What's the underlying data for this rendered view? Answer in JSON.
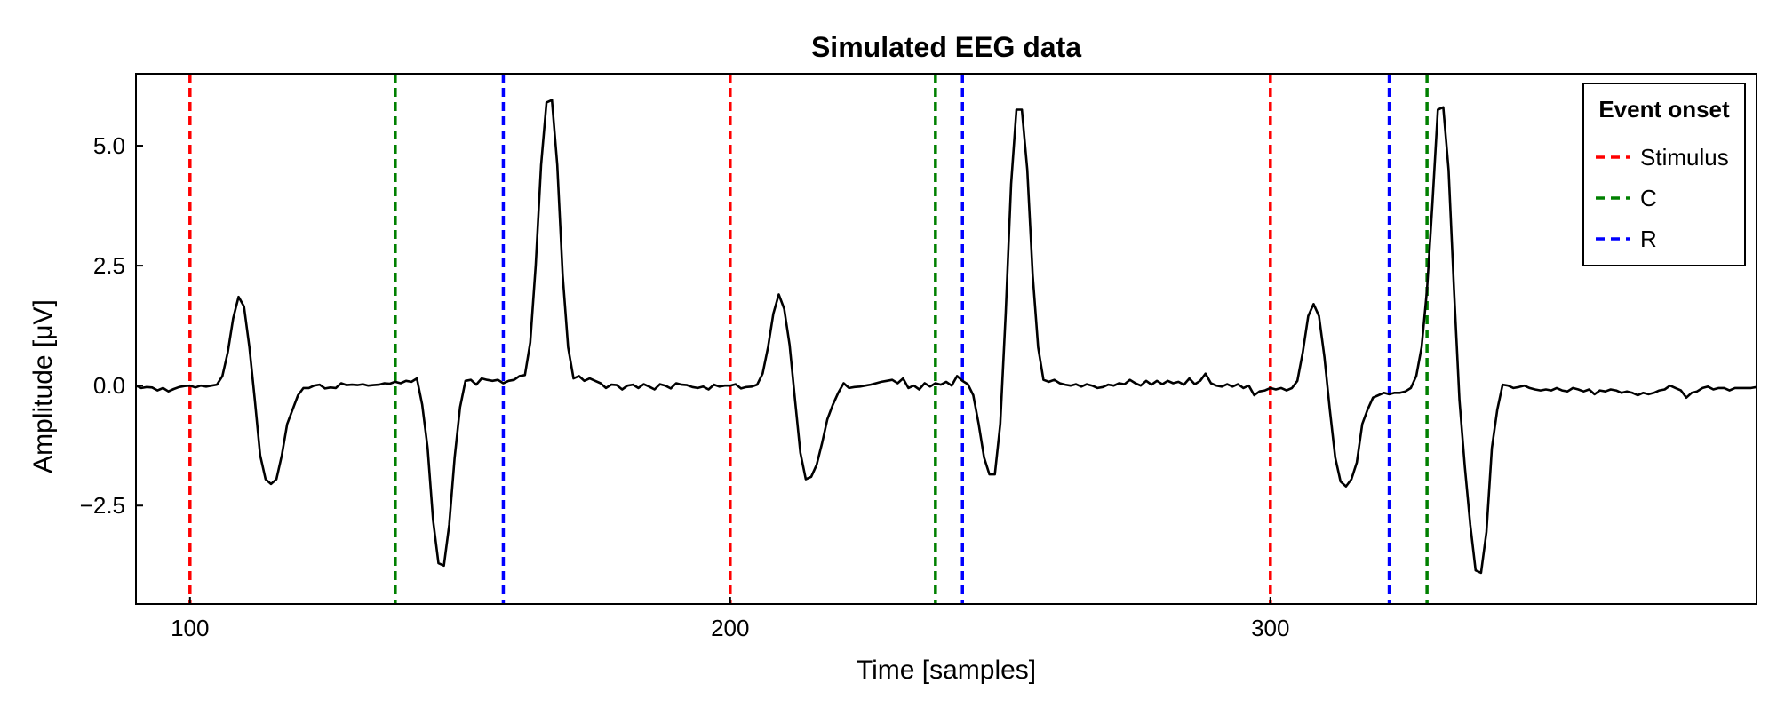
{
  "chart_data": {
    "type": "line",
    "title": "Simulated EEG data",
    "xlabel": "Time [samples]",
    "ylabel": "Amplitude [μV]",
    "xlim": [
      90,
      390
    ],
    "ylim": [
      -4.55,
      6.5
    ],
    "xticks": [
      100,
      200,
      300
    ],
    "xtick_labels": [
      "100",
      "200",
      "300"
    ],
    "yticks": [
      -2.5,
      0.0,
      2.5,
      5.0
    ],
    "ytick_labels": [
      "−2.5",
      "0.0",
      "2.5",
      "5.0"
    ],
    "grid": false,
    "legend": {
      "title": "Event onset",
      "placement": "top-right",
      "entries": [
        {
          "label": "Stimulus",
          "color": "#ff0000"
        },
        {
          "label": "C",
          "color": "#008000"
        },
        {
          "label": "R",
          "color": "#0000ff"
        }
      ]
    },
    "series": [
      {
        "color": "#000000",
        "points": [
          [
            90,
            0.0
          ],
          [
            91,
            -0.05
          ],
          [
            92,
            -0.03
          ],
          [
            93,
            -0.04
          ],
          [
            94,
            -0.1
          ],
          [
            95,
            -0.05
          ],
          [
            96,
            -0.12
          ],
          [
            97,
            -0.07
          ],
          [
            98,
            -0.03
          ],
          [
            99,
            -0.01
          ],
          [
            100,
            0.0
          ],
          [
            101,
            -0.04
          ],
          [
            102,
            0.0
          ],
          [
            103,
            -0.02
          ],
          [
            104,
            0.0
          ],
          [
            105,
            0.02
          ],
          [
            106,
            0.2
          ],
          [
            107,
            0.7
          ],
          [
            108,
            1.4
          ],
          [
            109,
            1.85
          ],
          [
            110,
            1.65
          ],
          [
            111,
            0.8
          ],
          [
            112,
            -0.3
          ],
          [
            113,
            -1.45
          ],
          [
            114,
            -1.95
          ],
          [
            115,
            -2.05
          ],
          [
            116,
            -1.95
          ],
          [
            117,
            -1.45
          ],
          [
            118,
            -0.8
          ],
          [
            119,
            -0.5
          ],
          [
            120,
            -0.2
          ],
          [
            121,
            -0.05
          ],
          [
            122,
            -0.05
          ],
          [
            123,
            0.0
          ],
          [
            124,
            0.02
          ],
          [
            125,
            -0.06
          ],
          [
            126,
            -0.04
          ],
          [
            127,
            -0.05
          ],
          [
            128,
            0.05
          ],
          [
            129,
            0.01
          ],
          [
            130,
            0.02
          ],
          [
            131,
            0.01
          ],
          [
            132,
            0.03
          ],
          [
            133,
            0.0
          ],
          [
            134,
            0.01
          ],
          [
            135,
            0.02
          ],
          [
            136,
            0.05
          ],
          [
            137,
            0.04
          ],
          [
            138,
            0.08
          ],
          [
            139,
            0.05
          ],
          [
            140,
            0.1
          ],
          [
            141,
            0.08
          ],
          [
            142,
            0.15
          ],
          [
            143,
            -0.4
          ],
          [
            144,
            -1.3
          ],
          [
            145,
            -2.8
          ],
          [
            146,
            -3.7
          ],
          [
            147,
            -3.75
          ],
          [
            148,
            -2.9
          ],
          [
            149,
            -1.5
          ],
          [
            150,
            -0.45
          ],
          [
            151,
            0.1
          ],
          [
            152,
            0.12
          ],
          [
            153,
            0.02
          ],
          [
            154,
            0.15
          ],
          [
            155,
            0.12
          ],
          [
            156,
            0.1
          ],
          [
            157,
            0.12
          ],
          [
            158,
            0.05
          ],
          [
            159,
            0.1
          ],
          [
            160,
            0.12
          ],
          [
            161,
            0.2
          ],
          [
            162,
            0.22
          ],
          [
            163,
            0.9
          ],
          [
            164,
            2.5
          ],
          [
            165,
            4.6
          ],
          [
            166,
            5.9
          ],
          [
            167,
            5.95
          ],
          [
            168,
            4.6
          ],
          [
            169,
            2.3
          ],
          [
            170,
            0.8
          ],
          [
            171,
            0.15
          ],
          [
            172,
            0.2
          ],
          [
            173,
            0.1
          ],
          [
            174,
            0.15
          ],
          [
            175,
            0.1
          ],
          [
            176,
            0.05
          ],
          [
            177,
            -0.05
          ],
          [
            178,
            0.02
          ],
          [
            179,
            0.01
          ],
          [
            180,
            -0.08
          ],
          [
            181,
            0.0
          ],
          [
            182,
            0.02
          ],
          [
            183,
            -0.05
          ],
          [
            184,
            0.03
          ],
          [
            185,
            -0.02
          ],
          [
            186,
            -0.08
          ],
          [
            187,
            0.03
          ],
          [
            188,
            0.0
          ],
          [
            189,
            -0.06
          ],
          [
            190,
            0.05
          ],
          [
            191,
            0.02
          ],
          [
            192,
            0.01
          ],
          [
            193,
            -0.03
          ],
          [
            194,
            -0.05
          ],
          [
            195,
            -0.02
          ],
          [
            196,
            -0.08
          ],
          [
            197,
            0.02
          ],
          [
            198,
            -0.02
          ],
          [
            199,
            0.0
          ],
          [
            200,
            0.0
          ],
          [
            201,
            0.03
          ],
          [
            202,
            -0.06
          ],
          [
            203,
            -0.03
          ],
          [
            204,
            -0.02
          ],
          [
            205,
            0.02
          ],
          [
            206,
            0.25
          ],
          [
            207,
            0.8
          ],
          [
            208,
            1.5
          ],
          [
            209,
            1.9
          ],
          [
            210,
            1.6
          ],
          [
            211,
            0.85
          ],
          [
            212,
            -0.3
          ],
          [
            213,
            -1.4
          ],
          [
            214,
            -1.95
          ],
          [
            215,
            -1.9
          ],
          [
            216,
            -1.65
          ],
          [
            217,
            -1.2
          ],
          [
            218,
            -0.7
          ],
          [
            219,
            -0.4
          ],
          [
            220,
            -0.15
          ],
          [
            221,
            0.05
          ],
          [
            222,
            -0.05
          ],
          [
            223,
            -0.03
          ],
          [
            224,
            -0.02
          ],
          [
            225,
            0.0
          ],
          [
            226,
            0.02
          ],
          [
            227,
            0.05
          ],
          [
            228,
            0.08
          ],
          [
            229,
            0.1
          ],
          [
            230,
            0.12
          ],
          [
            231,
            0.05
          ],
          [
            232,
            0.15
          ],
          [
            233,
            -0.05
          ],
          [
            234,
            0.0
          ],
          [
            235,
            -0.08
          ],
          [
            236,
            0.05
          ],
          [
            237,
            -0.02
          ],
          [
            238,
            0.05
          ],
          [
            239,
            0.02
          ],
          [
            240,
            0.08
          ],
          [
            241,
            0.0
          ],
          [
            242,
            0.2
          ],
          [
            243,
            0.1
          ],
          [
            244,
            0.03
          ],
          [
            245,
            -0.2
          ],
          [
            246,
            -0.8
          ],
          [
            247,
            -1.5
          ],
          [
            248,
            -1.85
          ],
          [
            249,
            -1.85
          ],
          [
            250,
            -0.8
          ],
          [
            251,
            1.5
          ],
          [
            252,
            4.2
          ],
          [
            253,
            5.75
          ],
          [
            254,
            5.75
          ],
          [
            255,
            4.5
          ],
          [
            256,
            2.3
          ],
          [
            257,
            0.8
          ],
          [
            258,
            0.12
          ],
          [
            259,
            0.08
          ],
          [
            260,
            0.12
          ],
          [
            261,
            0.05
          ],
          [
            262,
            0.02
          ],
          [
            263,
            0.0
          ],
          [
            264,
            0.03
          ],
          [
            265,
            -0.02
          ],
          [
            266,
            0.03
          ],
          [
            267,
            0.0
          ],
          [
            268,
            -0.05
          ],
          [
            269,
            -0.03
          ],
          [
            270,
            0.02
          ],
          [
            271,
            0.0
          ],
          [
            272,
            0.05
          ],
          [
            273,
            0.03
          ],
          [
            274,
            0.12
          ],
          [
            275,
            0.05
          ],
          [
            276,
            0.0
          ],
          [
            277,
            0.1
          ],
          [
            278,
            0.02
          ],
          [
            279,
            0.1
          ],
          [
            280,
            0.03
          ],
          [
            281,
            0.1
          ],
          [
            282,
            0.05
          ],
          [
            283,
            0.08
          ],
          [
            284,
            0.02
          ],
          [
            285,
            0.15
          ],
          [
            286,
            0.03
          ],
          [
            287,
            0.1
          ],
          [
            288,
            0.25
          ],
          [
            289,
            0.05
          ],
          [
            290,
            0.0
          ],
          [
            291,
            -0.02
          ],
          [
            292,
            0.03
          ],
          [
            293,
            -0.02
          ],
          [
            294,
            0.03
          ],
          [
            295,
            -0.05
          ],
          [
            296,
            0.0
          ],
          [
            297,
            -0.2
          ],
          [
            298,
            -0.12
          ],
          [
            299,
            -0.1
          ],
          [
            300,
            -0.05
          ],
          [
            301,
            -0.08
          ],
          [
            302,
            -0.05
          ],
          [
            303,
            -0.1
          ],
          [
            304,
            -0.05
          ],
          [
            305,
            0.1
          ],
          [
            306,
            0.7
          ],
          [
            307,
            1.45
          ],
          [
            308,
            1.7
          ],
          [
            309,
            1.45
          ],
          [
            310,
            0.6
          ],
          [
            311,
            -0.5
          ],
          [
            312,
            -1.5
          ],
          [
            313,
            -2.0
          ],
          [
            314,
            -2.1
          ],
          [
            315,
            -1.95
          ],
          [
            316,
            -1.6
          ],
          [
            317,
            -0.8
          ],
          [
            318,
            -0.5
          ],
          [
            319,
            -0.25
          ],
          [
            320,
            -0.2
          ],
          [
            321,
            -0.15
          ],
          [
            322,
            -0.18
          ],
          [
            323,
            -0.15
          ],
          [
            324,
            -0.15
          ],
          [
            325,
            -0.12
          ],
          [
            326,
            -0.05
          ],
          [
            327,
            0.2
          ],
          [
            328,
            0.8
          ],
          [
            329,
            2.0
          ],
          [
            330,
            3.8
          ],
          [
            331,
            5.75
          ],
          [
            332,
            5.8
          ],
          [
            333,
            4.5
          ],
          [
            334,
            2.0
          ],
          [
            335,
            -0.3
          ],
          [
            336,
            -1.7
          ],
          [
            337,
            -2.9
          ],
          [
            338,
            -3.85
          ],
          [
            339,
            -3.9
          ],
          [
            340,
            -3.05
          ],
          [
            341,
            -1.3
          ],
          [
            342,
            -0.5
          ],
          [
            343,
            0.02
          ],
          [
            344,
            0.0
          ],
          [
            345,
            -0.05
          ],
          [
            346,
            -0.03
          ],
          [
            347,
            0.0
          ],
          [
            348,
            -0.05
          ],
          [
            349,
            -0.08
          ],
          [
            350,
            -0.1
          ],
          [
            351,
            -0.08
          ],
          [
            352,
            -0.1
          ],
          [
            353,
            -0.05
          ],
          [
            354,
            -0.1
          ],
          [
            355,
            -0.12
          ],
          [
            356,
            -0.05
          ],
          [
            357,
            -0.08
          ],
          [
            358,
            -0.12
          ],
          [
            359,
            -0.08
          ],
          [
            360,
            -0.18
          ],
          [
            361,
            -0.1
          ],
          [
            362,
            -0.12
          ],
          [
            363,
            -0.08
          ],
          [
            364,
            -0.1
          ],
          [
            365,
            -0.15
          ],
          [
            366,
            -0.12
          ],
          [
            367,
            -0.15
          ],
          [
            368,
            -0.2
          ],
          [
            369,
            -0.15
          ],
          [
            370,
            -0.18
          ],
          [
            371,
            -0.15
          ],
          [
            372,
            -0.1
          ],
          [
            373,
            -0.08
          ],
          [
            374,
            0.0
          ],
          [
            375,
            -0.05
          ],
          [
            376,
            -0.1
          ],
          [
            377,
            -0.25
          ],
          [
            378,
            -0.15
          ],
          [
            379,
            -0.12
          ],
          [
            380,
            -0.05
          ],
          [
            381,
            -0.02
          ],
          [
            382,
            -0.08
          ],
          [
            383,
            -0.05
          ],
          [
            384,
            -0.05
          ],
          [
            385,
            -0.1
          ],
          [
            386,
            -0.05
          ],
          [
            387,
            -0.05
          ],
          [
            388,
            -0.05
          ],
          [
            389,
            -0.05
          ],
          [
            390,
            -0.03
          ]
        ]
      }
    ],
    "events": [
      {
        "kind": "Stimulus",
        "x": 100,
        "color": "#ff0000"
      },
      {
        "kind": "C",
        "x": 138,
        "color": "#008000"
      },
      {
        "kind": "R",
        "x": 158,
        "color": "#0000ff"
      },
      {
        "kind": "Stimulus",
        "x": 200,
        "color": "#ff0000"
      },
      {
        "kind": "C",
        "x": 238,
        "color": "#008000"
      },
      {
        "kind": "R",
        "x": 243,
        "color": "#0000ff"
      },
      {
        "kind": "Stimulus",
        "x": 300,
        "color": "#ff0000"
      },
      {
        "kind": "R",
        "x": 322,
        "color": "#0000ff"
      },
      {
        "kind": "C",
        "x": 329,
        "color": "#008000"
      }
    ]
  }
}
